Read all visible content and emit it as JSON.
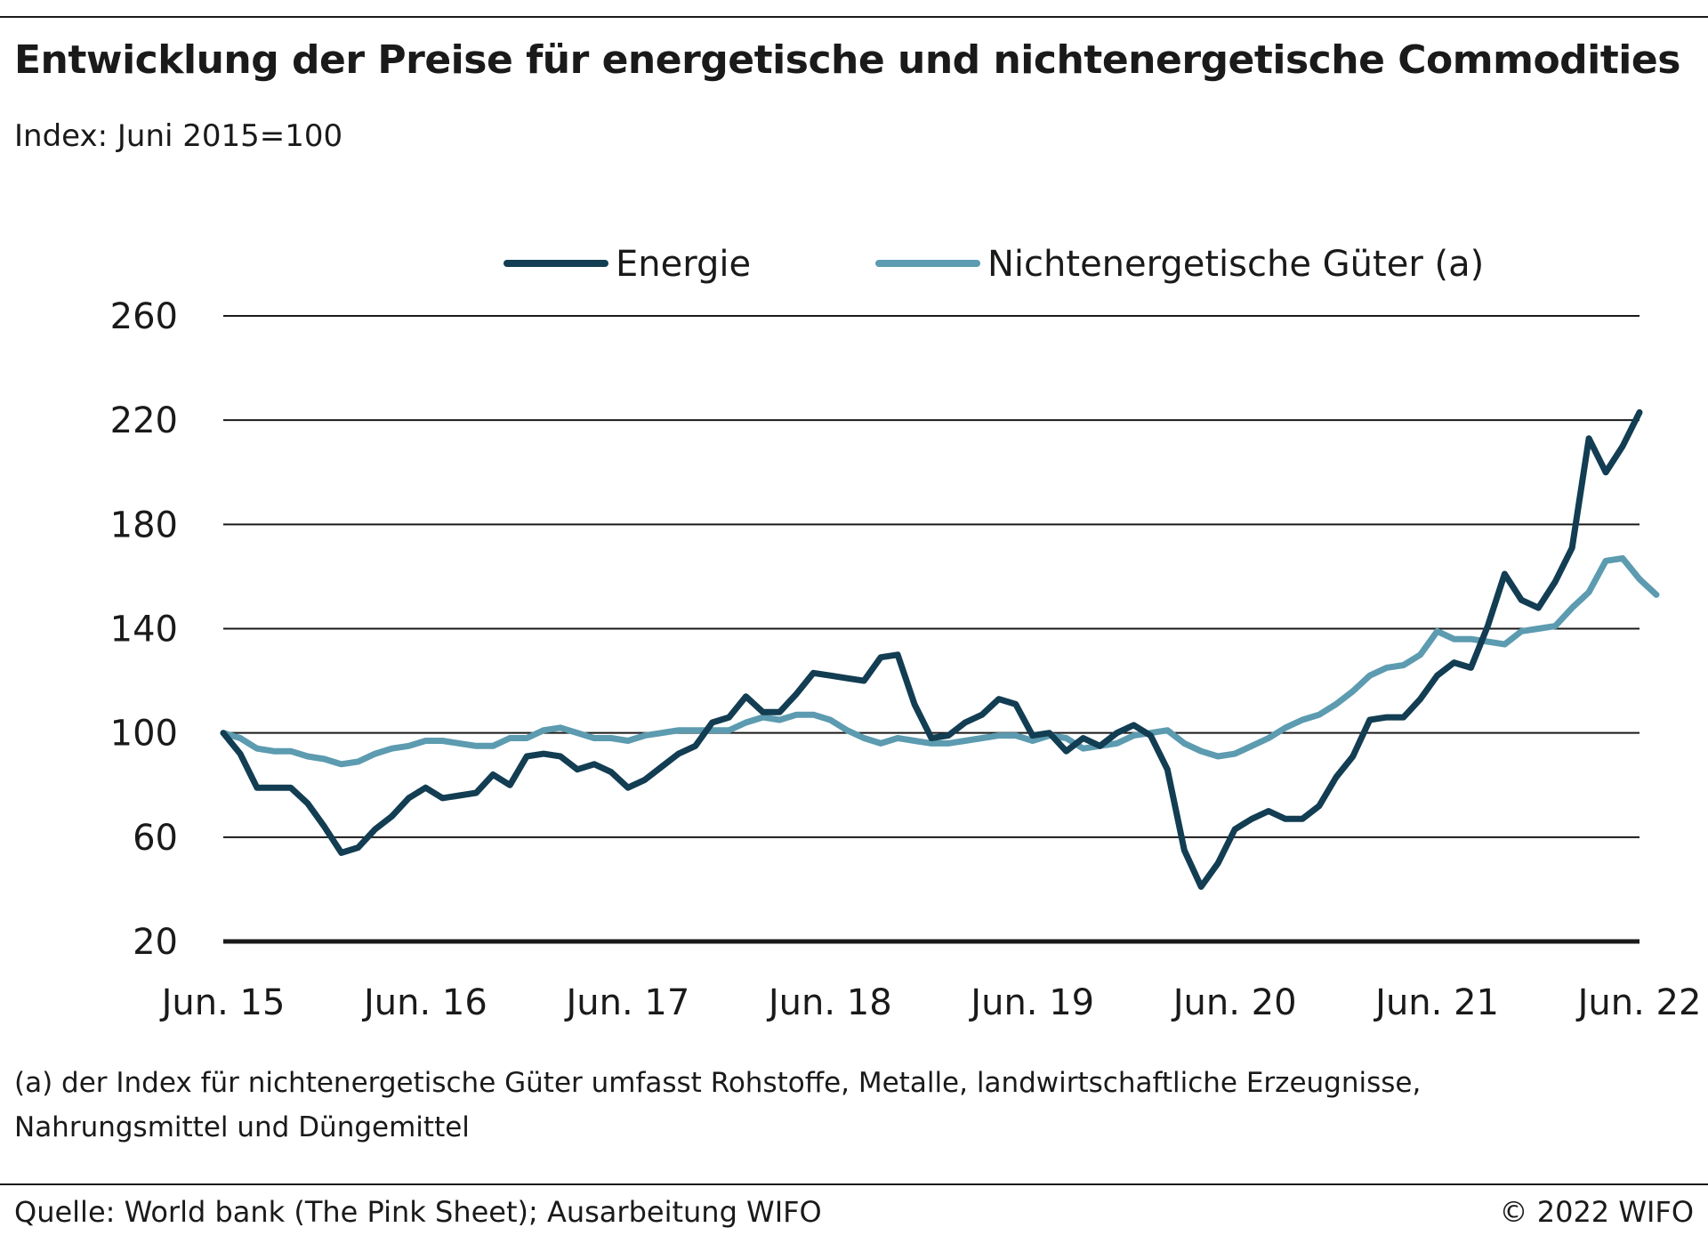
{
  "title": "Entwicklung der Preise für energetische und nichtenergetische Commodities",
  "subtitle": "Index: Juni 2015=100",
  "footnote_line1": "(a) der Index für nichtenergetische Güter umfasst Rohstoffe, Metalle, landwirtschaftliche Erzeugnisse,",
  "footnote_line2": "Nahrungsmittel und Düngemittel",
  "source": "Quelle: World bank (The Pink Sheet); Ausarbeitung WIFO",
  "copyright": "© 2022 WIFO",
  "chart_data": {
    "type": "line",
    "title": "Entwicklung der Preise für energetische und nichtenergetische Commodities",
    "ylabel": "",
    "xlabel": "",
    "ylim": [
      20,
      260
    ],
    "yticks": [
      20,
      60,
      100,
      140,
      180,
      220,
      260
    ],
    "grid": true,
    "legend_position": "top",
    "x_start": "Jun. 15",
    "x_tick_labels": [
      "Jun. 15",
      "Jun. 16",
      "Jun. 17",
      "Jun. 18",
      "Jun. 19",
      "Jun. 20",
      "Jun. 21",
      "Jun. 22"
    ],
    "series": [
      {
        "name": "Energie",
        "color": "#123d52",
        "values": [
          100,
          92,
          79,
          79,
          79,
          73,
          64,
          54,
          56,
          63,
          68,
          75,
          79,
          75,
          76,
          77,
          84,
          80,
          91,
          92,
          91,
          86,
          88,
          85,
          79,
          82,
          87,
          92,
          95,
          104,
          106,
          114,
          108,
          108,
          115,
          123,
          122,
          121,
          120,
          129,
          130,
          111,
          98,
          99,
          104,
          107,
          113,
          111,
          99,
          100,
          93,
          98,
          95,
          100,
          103,
          99,
          86,
          55,
          41,
          50,
          63,
          67,
          70,
          67,
          67,
          72,
          83,
          91,
          105,
          106,
          106,
          113,
          122,
          127,
          125,
          141,
          161,
          151,
          148,
          158,
          171,
          213,
          200,
          210,
          223
        ]
      },
      {
        "name": "Nichtenergetische Güter (a)",
        "color": "#5c9bb0",
        "values": [
          100,
          98,
          94,
          93,
          93,
          91,
          90,
          88,
          89,
          92,
          94,
          95,
          97,
          97,
          96,
          95,
          95,
          98,
          98,
          101,
          102,
          100,
          98,
          98,
          97,
          99,
          100,
          101,
          101,
          101,
          101,
          104,
          106,
          105,
          107,
          107,
          105,
          101,
          98,
          96,
          98,
          97,
          96,
          96,
          97,
          98,
          99,
          99,
          97,
          99,
          98,
          94,
          95,
          96,
          99,
          100,
          101,
          96,
          93,
          91,
          92,
          95,
          98,
          102,
          105,
          107,
          111,
          116,
          122,
          125,
          126,
          130,
          139,
          136,
          136,
          135,
          134,
          139,
          140,
          141,
          148,
          154,
          166,
          167,
          159,
          153
        ]
      }
    ]
  }
}
